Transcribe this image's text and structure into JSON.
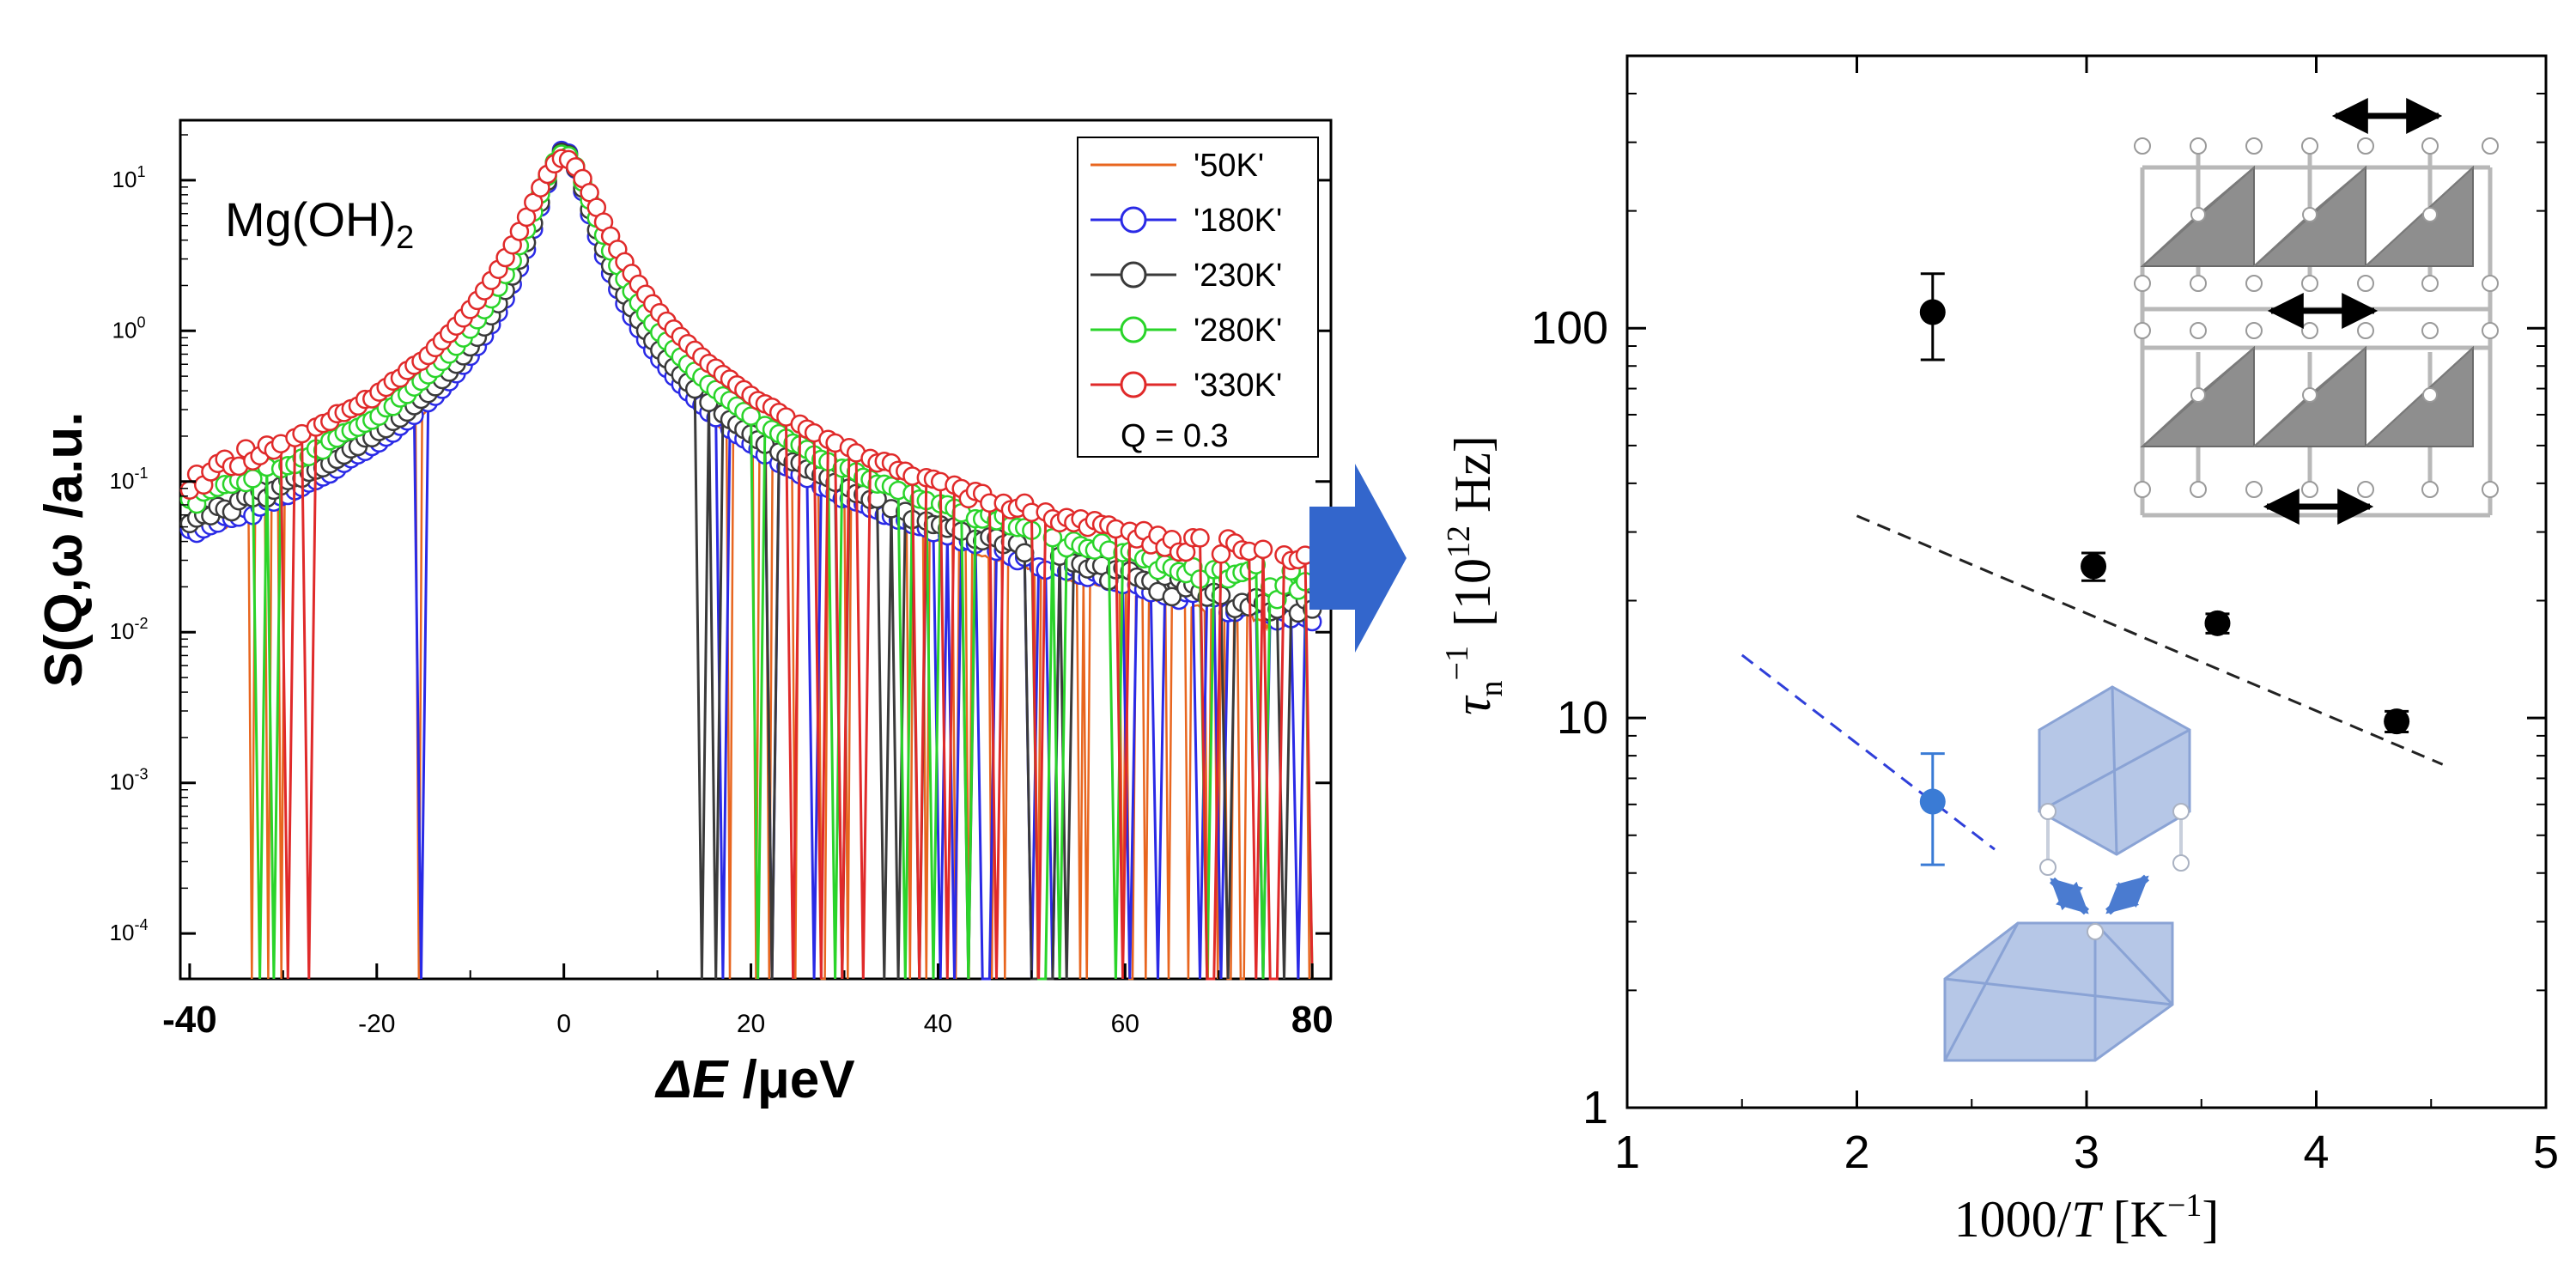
{
  "colors": {
    "s50K": "#e8661f",
    "s180K": "#2a2ae6",
    "s230K": "#3a3a3a",
    "s280K": "#2ad42a",
    "s330K": "#e02a2a",
    "arrow": "#3366cc",
    "blue_point": "#3a7bd5",
    "blue_fit": "#2f3fd9",
    "black_fit": "#222222",
    "octa_gray": "#8c8c8c",
    "octa_blue": "#8fa8d8"
  },
  "chart_data": [
    {
      "type": "line",
      "log_y": true,
      "ylim": [
        5e-05,
        25
      ],
      "xlim": [
        -41,
        82
      ],
      "title": "",
      "annotation": "Mg(OH)",
      "annotation_sub": "2",
      "ylabel": "S(Q,ω /a.u.",
      "xlabel_var": "ΔE",
      "xlabel_unit": " /μeV",
      "legend_placement": "top-right",
      "x_ticks": [
        {
          "value": -40,
          "label": "-40"
        },
        {
          "value": -20,
          "label": "-20"
        },
        {
          "value": 0,
          "label": "0"
        },
        {
          "value": 20,
          "label": "20"
        },
        {
          "value": 40,
          "label": "40"
        },
        {
          "value": 60,
          "label": "60"
        },
        {
          "value": 80,
          "label": "80"
        }
      ],
      "y_ticks": [
        {
          "value": 0.0001,
          "base": "10",
          "exp": "-4"
        },
        {
          "value": 0.001,
          "base": "10",
          "exp": "-3"
        },
        {
          "value": 0.01,
          "base": "10",
          "exp": "-2"
        },
        {
          "value": 0.1,
          "base": "10",
          "exp": "-1"
        },
        {
          "value": 1,
          "base": "10",
          "exp": "0"
        },
        {
          "value": 10,
          "base": "10",
          "exp": "1"
        }
      ],
      "legend_note": "Q = 0.3",
      "series": [
        {
          "name": "'50K'",
          "marker": "none",
          "peak": 16,
          "gamma": 2.0,
          "bg_left": 0.0018,
          "bg_right": 0.0006
        },
        {
          "name": "'180K'",
          "marker": "circle",
          "peak": 16,
          "gamma": 2.1,
          "bg_left": 0.0025,
          "bg_right": 0.0012
        },
        {
          "name": "'230K'",
          "marker": "circle",
          "peak": 15.5,
          "gamma": 2.3,
          "bg_left": 0.0038,
          "bg_right": 0.0017
        },
        {
          "name": "'280K'",
          "marker": "circle",
          "peak": 15,
          "gamma": 2.7,
          "bg_left": 0.0062,
          "bg_right": 0.0026
        },
        {
          "name": "'330K'",
          "marker": "circle",
          "peak": 14,
          "gamma": 3.3,
          "bg_left": 0.0115,
          "bg_right": 0.0045
        }
      ]
    },
    {
      "type": "scatter",
      "log_y": true,
      "xlim": [
        1,
        5
      ],
      "ylim": [
        1,
        500
      ],
      "xlabel_num": "1000/",
      "xlabel_var": "T",
      "xlabel_unit": " [K",
      "xlabel_exp": "−1",
      "xlabel_close": "]",
      "ylabel_var": "τ",
      "ylabel_sub": "n",
      "ylabel_exp": "−1",
      "ylabel_unit": "[10",
      "ylabel_unit_exp": "12",
      "ylabel_unit_tail": " Hz]",
      "x_ticks": [
        {
          "value": 1,
          "label": "1"
        },
        {
          "value": 2,
          "label": "2"
        },
        {
          "value": 3,
          "label": "3"
        },
        {
          "value": 4,
          "label": "4"
        },
        {
          "value": 5,
          "label": "5"
        }
      ],
      "y_ticks": [
        {
          "value": 1,
          "label": "1"
        },
        {
          "value": 10,
          "label": "10"
        },
        {
          "value": 100,
          "label": "100"
        }
      ],
      "series": [
        {
          "color_key": "black",
          "points": [
            {
              "x": 2.33,
              "y": 110,
              "err_lo": 83,
              "err_hi": 138
            },
            {
              "x": 3.03,
              "y": 24.5,
              "err_lo": 22.5,
              "err_hi": 26.5
            },
            {
              "x": 3.57,
              "y": 17.5,
              "err_lo": 16.5,
              "err_hi": 18.5
            },
            {
              "x": 4.35,
              "y": 9.8,
              "err_lo": 9.2,
              "err_hi": 10.4
            }
          ],
          "fit": [
            {
              "x": 2.0,
              "y": 33
            },
            {
              "x": 4.55,
              "y": 7.6
            }
          ]
        },
        {
          "color_key": "blue",
          "points": [
            {
              "x": 2.33,
              "y": 6.1,
              "err_lo": 4.2,
              "err_hi": 8.1
            }
          ],
          "fit": [
            {
              "x": 1.5,
              "y": 14.5
            },
            {
              "x": 2.6,
              "y": 4.6
            }
          ]
        }
      ]
    }
  ]
}
